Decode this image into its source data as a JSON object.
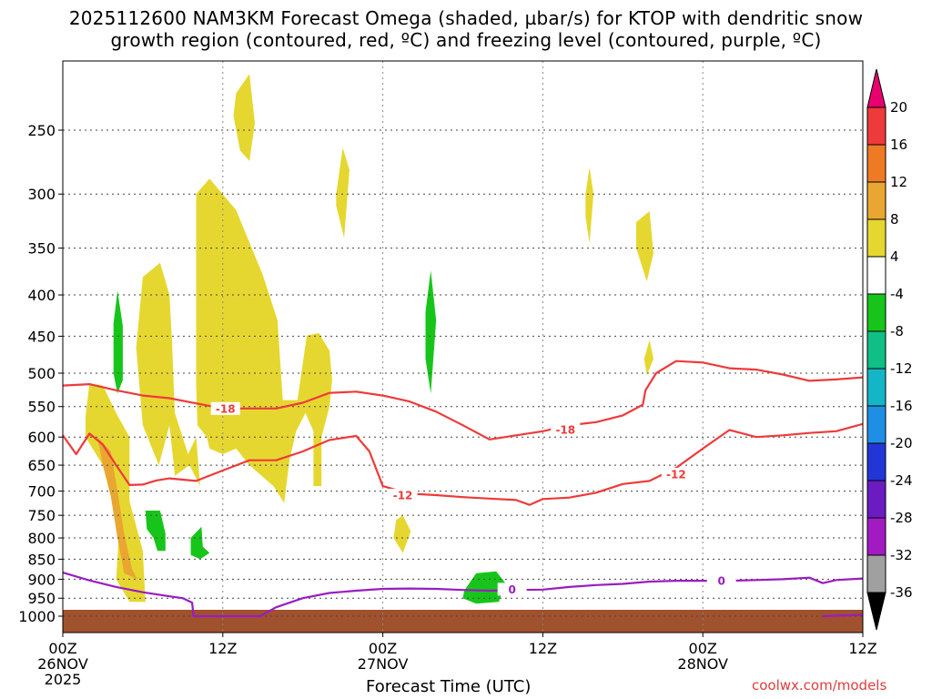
{
  "title": {
    "line1": "2025112600 NAM3KM Forecast Omega (shaded, µbar/s) for KTOP with dendritic snow",
    "line2": "growth region (contoured, red, ºC) and freezing level (contoured, purple, ºC)"
  },
  "credit": "coolwx.com/models",
  "chart_data": {
    "type": "time-height cross section",
    "title": "2025112600 NAM3KM Forecast Omega (shaded, µbar/s) for KTOP with dendritic snow growth region (contoured, red, ºC) and freezing level (contoured, purple, ºC)",
    "xlabel": "Forecast Time (UTC)",
    "ylabel": "",
    "x_ticks": [
      {
        "hour": 0,
        "lines": [
          "00Z",
          "26NOV",
          "2025"
        ]
      },
      {
        "hour": 12,
        "lines": [
          "12Z"
        ]
      },
      {
        "hour": 24,
        "lines": [
          "00Z",
          "27NOV"
        ]
      },
      {
        "hour": 36,
        "lines": [
          "12Z"
        ]
      },
      {
        "hour": 48,
        "lines": [
          "00Z",
          "28NOV"
        ]
      },
      {
        "hour": 60,
        "lines": [
          "12Z"
        ]
      }
    ],
    "xlim": [
      0,
      60
    ],
    "y_ticks": [
      250,
      300,
      350,
      400,
      450,
      500,
      550,
      600,
      650,
      700,
      750,
      800,
      850,
      900,
      950,
      1000
    ],
    "ylim": [
      1020,
      200
    ],
    "y_scale": "log-pressure (inverted)",
    "grid": true,
    "colorbar": {
      "labels": [
        "20",
        "16",
        "12",
        "8",
        "4",
        "-4",
        "-8",
        "-12",
        "-16",
        "-20",
        "-24",
        "-28",
        "-32",
        "-36"
      ],
      "colors": [
        "#e8006e",
        "#ee3a3a",
        "#ef7a24",
        "#e9a630",
        "#e6d730",
        "#ffffff",
        "#17c51a",
        "#0fbf86",
        "#13b6c6",
        "#1f8fe6",
        "#2236d8",
        "#6a1bc1",
        "#a21bc2",
        "#a0a0a0",
        "#000000"
      ]
    },
    "ground_color": "#a0512d",
    "contour_labels": {
      "dendritic_top": "-18",
      "dendritic_bottom": "-12",
      "freezing": "0"
    },
    "series": [
      {
        "name": "-18",
        "color": "#ee3a3a",
        "points": [
          [
            0,
            518
          ],
          [
            2,
            516
          ],
          [
            4,
            525
          ],
          [
            6,
            533
          ],
          [
            8,
            537
          ],
          [
            10,
            545
          ],
          [
            12,
            553
          ],
          [
            14,
            553
          ],
          [
            16,
            553
          ],
          [
            18,
            544
          ],
          [
            20,
            529
          ],
          [
            22,
            527
          ],
          [
            24,
            533
          ],
          [
            26,
            542
          ],
          [
            28,
            558
          ],
          [
            30,
            580
          ],
          [
            32,
            604
          ],
          [
            34,
            597
          ],
          [
            36,
            590
          ],
          [
            38,
            580
          ],
          [
            40,
            575
          ],
          [
            42,
            564
          ],
          [
            43.5,
            547
          ],
          [
            43.7,
            525
          ],
          [
            44.5,
            500
          ],
          [
            46,
            483
          ],
          [
            48,
            485
          ],
          [
            50,
            493
          ],
          [
            52,
            495
          ],
          [
            54,
            502
          ],
          [
            56,
            511
          ],
          [
            58,
            509
          ],
          [
            60,
            506
          ]
        ]
      },
      {
        "name": "-12",
        "color": "#ee3a3a",
        "points": [
          [
            0,
            597
          ],
          [
            1,
            630
          ],
          [
            2,
            594
          ],
          [
            3,
            613
          ],
          [
            4,
            650
          ],
          [
            5,
            688
          ],
          [
            6,
            687
          ],
          [
            7,
            679
          ],
          [
            8,
            675
          ],
          [
            10,
            680
          ],
          [
            12,
            660
          ],
          [
            14,
            641
          ],
          [
            16,
            641
          ],
          [
            18,
            625
          ],
          [
            20,
            605
          ],
          [
            22,
            598
          ],
          [
            23,
            625
          ],
          [
            24,
            690
          ],
          [
            26,
            705
          ],
          [
            28,
            708
          ],
          [
            30,
            712
          ],
          [
            32,
            715
          ],
          [
            34,
            718
          ],
          [
            35,
            728
          ],
          [
            36,
            716
          ],
          [
            38,
            713
          ],
          [
            40,
            703
          ],
          [
            42,
            686
          ],
          [
            44,
            680
          ],
          [
            46,
            655
          ],
          [
            48,
            620
          ],
          [
            50,
            588
          ],
          [
            52,
            600
          ],
          [
            54,
            597
          ],
          [
            56,
            593
          ],
          [
            58,
            590
          ],
          [
            60,
            578
          ]
        ]
      },
      {
        "name": "0",
        "color": "#9a1cc2",
        "points": [
          [
            0,
            883
          ],
          [
            2,
            903
          ],
          [
            4,
            920
          ],
          [
            6,
            934
          ],
          [
            8,
            945
          ],
          [
            9,
            950
          ],
          [
            9.7,
            962
          ],
          [
            9.8,
            1000
          ],
          [
            14.8,
            1000
          ],
          [
            16,
            975
          ],
          [
            18,
            950
          ],
          [
            20,
            936
          ],
          [
            22,
            930
          ],
          [
            24,
            925
          ],
          [
            26,
            924
          ],
          [
            28,
            925
          ],
          [
            30,
            928
          ],
          [
            32,
            930
          ],
          [
            34,
            928
          ],
          [
            36,
            927
          ],
          [
            38,
            920
          ],
          [
            40,
            915
          ],
          [
            42,
            912
          ],
          [
            44,
            906
          ],
          [
            46,
            904
          ],
          [
            48,
            904
          ],
          [
            50,
            904
          ],
          [
            52,
            902
          ],
          [
            54,
            900
          ],
          [
            56,
            896
          ],
          [
            57,
            910
          ],
          [
            58,
            902
          ],
          [
            60,
            898
          ]
        ]
      }
    ],
    "omega_regions": [
      {
        "level": "4",
        "color": "#e6d730",
        "points": [
          [
            1.7,
            566
          ],
          [
            2,
            515
          ],
          [
            3,
            518
          ],
          [
            4,
            560
          ],
          [
            5,
            600
          ],
          [
            5,
            720
          ],
          [
            6,
            830
          ],
          [
            6.2,
            960
          ],
          [
            5,
            960
          ],
          [
            4,
            900
          ],
          [
            4.2,
            800
          ],
          [
            3.6,
            700
          ],
          [
            3,
            650
          ],
          [
            1.7,
            600
          ]
        ]
      },
      {
        "level": "8",
        "color": "#e9a630",
        "points": [
          [
            2.6,
            600
          ],
          [
            3.6,
            625
          ],
          [
            4.1,
            700
          ],
          [
            4.6,
            790
          ],
          [
            5.2,
            875
          ],
          [
            5.6,
            900
          ],
          [
            4.6,
            885
          ],
          [
            4.1,
            800
          ],
          [
            3.6,
            710
          ],
          [
            3,
            650
          ]
        ]
      },
      {
        "level": "4",
        "color": "#e6d730",
        "points": [
          [
            5.5,
            465
          ],
          [
            6,
            380
          ],
          [
            7.3,
            365
          ],
          [
            8,
            400
          ],
          [
            8.2,
            460
          ],
          [
            8.4,
            560
          ],
          [
            9.4,
            630
          ],
          [
            10,
            600
          ],
          [
            10.3,
            690
          ],
          [
            9.5,
            650
          ],
          [
            8.4,
            670
          ],
          [
            8,
            580
          ],
          [
            7.2,
            650
          ],
          [
            6,
            580
          ]
        ]
      },
      {
        "level": "4",
        "color": "#e6d730",
        "points": [
          [
            10,
            300
          ],
          [
            11,
            287
          ],
          [
            13,
            314
          ],
          [
            15,
            378
          ],
          [
            16.1,
            430
          ],
          [
            16.5,
            540
          ],
          [
            17.6,
            540
          ],
          [
            18.3,
            449
          ],
          [
            19.2,
            446
          ],
          [
            20,
            469
          ],
          [
            20.2,
            510
          ],
          [
            20,
            550
          ],
          [
            19.4,
            600
          ],
          [
            19.4,
            690
          ],
          [
            18.8,
            690
          ],
          [
            18.8,
            590
          ],
          [
            18.2,
            560
          ],
          [
            17.5,
            590
          ],
          [
            17,
            640
          ],
          [
            16.6,
            724
          ],
          [
            15.8,
            690
          ],
          [
            14,
            650
          ],
          [
            13,
            620
          ],
          [
            12,
            630
          ],
          [
            11,
            620
          ],
          [
            10.8,
            600
          ],
          [
            10.1,
            580
          ],
          [
            10,
            520
          ]
        ]
      },
      {
        "level": "4",
        "color": "#e6d730",
        "points": [
          [
            13,
            225
          ],
          [
            14,
            213
          ],
          [
            14.4,
            245
          ],
          [
            14,
            273
          ],
          [
            13.3,
            265
          ],
          [
            12.8,
            240
          ]
        ]
      },
      {
        "level": "4",
        "color": "#e6d730",
        "points": [
          [
            20.5,
            300
          ],
          [
            21,
            263
          ],
          [
            21.5,
            280
          ],
          [
            21.1,
            340
          ],
          [
            20.5,
            310
          ]
        ]
      },
      {
        "level": "4",
        "color": "#e6d730",
        "points": [
          [
            25,
            760
          ],
          [
            25.5,
            750
          ],
          [
            26.1,
            785
          ],
          [
            25.5,
            835
          ],
          [
            24.8,
            800
          ]
        ]
      },
      {
        "level": "4",
        "color": "#e6d730",
        "points": [
          [
            39.2,
            300
          ],
          [
            39.5,
            278
          ],
          [
            39.8,
            300
          ],
          [
            39.5,
            345
          ],
          [
            39.2,
            320
          ]
        ]
      },
      {
        "level": "4",
        "color": "#e6d730",
        "points": [
          [
            43,
            325
          ],
          [
            44,
            315
          ],
          [
            44.3,
            355
          ],
          [
            43.8,
            385
          ],
          [
            43,
            350
          ]
        ]
      },
      {
        "level": "4",
        "color": "#e6d730",
        "points": [
          [
            43.6,
            480
          ],
          [
            44,
            455
          ],
          [
            44.3,
            480
          ],
          [
            43.8,
            503
          ]
        ]
      },
      {
        "level": "-4",
        "color": "#17c51a",
        "points": [
          [
            3.8,
            434
          ],
          [
            4.1,
            395
          ],
          [
            4.5,
            437
          ],
          [
            4.5,
            510
          ],
          [
            4.1,
            530
          ],
          [
            3.8,
            500
          ]
        ]
      },
      {
        "level": "-4",
        "color": "#17c51a",
        "points": [
          [
            6.2,
            740
          ],
          [
            7.3,
            740
          ],
          [
            7.7,
            790
          ],
          [
            7.7,
            830
          ],
          [
            7.1,
            830
          ],
          [
            6.8,
            800
          ],
          [
            6.3,
            780
          ]
        ]
      },
      {
        "level": "-4",
        "color": "#17c51a",
        "points": [
          [
            9.6,
            800
          ],
          [
            10.4,
            775
          ],
          [
            10.5,
            820
          ],
          [
            11,
            835
          ],
          [
            10.3,
            850
          ],
          [
            9.6,
            840
          ]
        ]
      },
      {
        "level": "-4",
        "color": "#17c51a",
        "points": [
          [
            27.2,
            420
          ],
          [
            27.6,
            373
          ],
          [
            28,
            430
          ],
          [
            27.6,
            530
          ],
          [
            27.2,
            480
          ]
        ]
      },
      {
        "level": "-4",
        "color": "#17c51a",
        "points": [
          [
            30.1,
            930
          ],
          [
            31,
            885
          ],
          [
            32.5,
            880
          ],
          [
            33.2,
            910
          ],
          [
            32.7,
            960
          ],
          [
            31,
            965
          ],
          [
            30,
            950
          ]
        ]
      }
    ]
  }
}
